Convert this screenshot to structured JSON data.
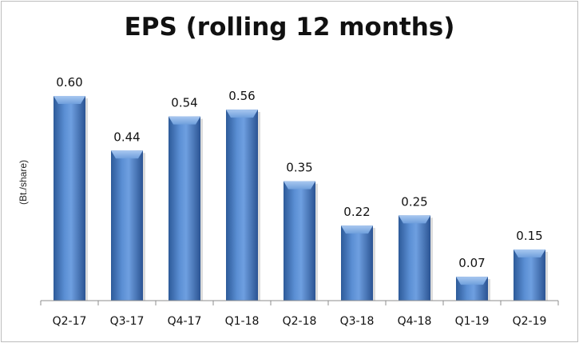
{
  "chart_data": {
    "type": "bar",
    "title": "EPS (rolling 12 months)",
    "ylabel": "(Bt./share)",
    "xlabel": "",
    "categories": [
      "Q2-17",
      "Q3-17",
      "Q4-17",
      "Q1-18",
      "Q2-18",
      "Q3-18",
      "Q4-18",
      "Q1-19",
      "Q2-19"
    ],
    "values": [
      0.6,
      0.44,
      0.54,
      0.56,
      0.35,
      0.22,
      0.25,
      0.07,
      0.15
    ],
    "data_labels": [
      "0.60",
      "0.44",
      "0.54",
      "0.56",
      "0.35",
      "0.22",
      "0.25",
      "0.07",
      "0.15"
    ],
    "ylim": [
      0,
      0.6
    ],
    "grid": false,
    "legend": "none",
    "colors": {
      "bar": "#4f81bd",
      "bar_light": "#8fb4e3",
      "bar_dark": "#2b5797"
    }
  }
}
